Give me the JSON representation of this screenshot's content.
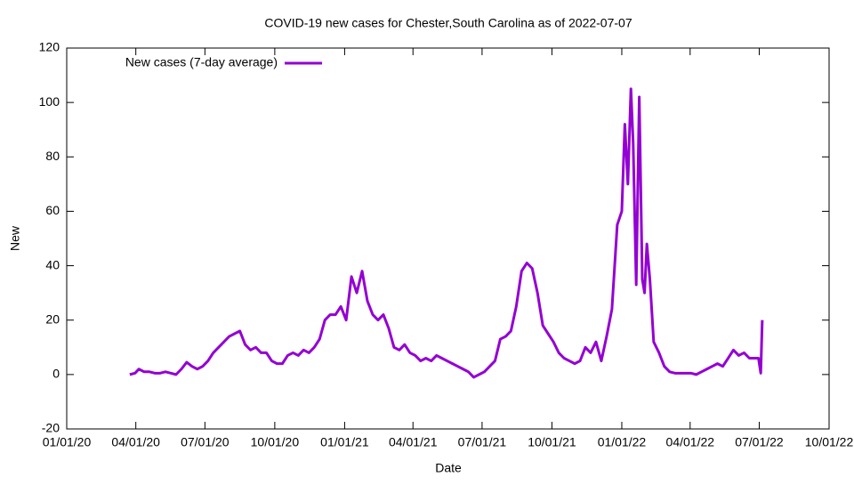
{
  "chart_data": {
    "type": "line",
    "title": "COVID-19 new cases for Chester,South Carolina as of 2022-07-07",
    "x_label": "Date",
    "y_label": "New",
    "xlim": [
      "2020-01-01",
      "2022-10-01"
    ],
    "xticks": [
      {
        "value": "2020-01-01",
        "label": "01/01/20"
      },
      {
        "value": "2020-04-01",
        "label": "04/01/20"
      },
      {
        "value": "2020-07-01",
        "label": "07/01/20"
      },
      {
        "value": "2020-10-01",
        "label": "10/01/20"
      },
      {
        "value": "2021-01-01",
        "label": "01/01/21"
      },
      {
        "value": "2021-04-01",
        "label": "04/01/21"
      },
      {
        "value": "2021-07-01",
        "label": "07/01/21"
      },
      {
        "value": "2021-10-01",
        "label": "10/01/21"
      },
      {
        "value": "2022-01-01",
        "label": "01/01/22"
      },
      {
        "value": "2022-04-01",
        "label": "04/01/22"
      },
      {
        "value": "2022-07-01",
        "label": "07/01/22"
      },
      {
        "value": "2022-10-01",
        "label": "10/01/22"
      }
    ],
    "ylim": [
      -20,
      120
    ],
    "yticks": [
      -20,
      0,
      20,
      40,
      60,
      80,
      100,
      120
    ],
    "legend": "top-left",
    "x": [
      "2020-03-24",
      "2020-03-31",
      "2020-04-05",
      "2020-04-12",
      "2020-04-19",
      "2020-04-26",
      "2020-05-03",
      "2020-05-10",
      "2020-05-17",
      "2020-05-24",
      "2020-05-31",
      "2020-06-07",
      "2020-06-14",
      "2020-06-21",
      "2020-06-28",
      "2020-07-05",
      "2020-07-12",
      "2020-07-19",
      "2020-07-26",
      "2020-08-02",
      "2020-08-09",
      "2020-08-16",
      "2020-08-23",
      "2020-08-30",
      "2020-09-06",
      "2020-09-13",
      "2020-09-20",
      "2020-09-27",
      "2020-10-04",
      "2020-10-11",
      "2020-10-18",
      "2020-10-25",
      "2020-11-01",
      "2020-11-08",
      "2020-11-15",
      "2020-11-22",
      "2020-11-29",
      "2020-12-06",
      "2020-12-13",
      "2020-12-20",
      "2020-12-27",
      "2021-01-03",
      "2021-01-10",
      "2021-01-17",
      "2021-01-24",
      "2021-01-31",
      "2021-02-07",
      "2021-02-14",
      "2021-02-21",
      "2021-02-28",
      "2021-03-07",
      "2021-03-14",
      "2021-03-21",
      "2021-03-28",
      "2021-04-04",
      "2021-04-11",
      "2021-04-18",
      "2021-04-25",
      "2021-05-02",
      "2021-05-09",
      "2021-05-16",
      "2021-05-23",
      "2021-05-30",
      "2021-06-06",
      "2021-06-13",
      "2021-06-20",
      "2021-06-27",
      "2021-07-04",
      "2021-07-11",
      "2021-07-18",
      "2021-07-25",
      "2021-08-01",
      "2021-08-08",
      "2021-08-15",
      "2021-08-22",
      "2021-08-29",
      "2021-09-05",
      "2021-09-12",
      "2021-09-19",
      "2021-09-26",
      "2021-10-03",
      "2021-10-10",
      "2021-10-17",
      "2021-10-24",
      "2021-10-31",
      "2021-11-07",
      "2021-11-14",
      "2021-11-21",
      "2021-11-28",
      "2021-12-05",
      "2021-12-12",
      "2021-12-19",
      "2021-12-26",
      "2022-01-01",
      "2022-01-05",
      "2022-01-09",
      "2022-01-13",
      "2022-01-16",
      "2022-01-20",
      "2022-01-24",
      "2022-01-28",
      "2022-01-31",
      "2022-02-03",
      "2022-02-07",
      "2022-02-12",
      "2022-02-19",
      "2022-02-26",
      "2022-03-05",
      "2022-03-12",
      "2022-03-19",
      "2022-03-26",
      "2022-04-02",
      "2022-04-09",
      "2022-04-16",
      "2022-04-23",
      "2022-04-30",
      "2022-05-07",
      "2022-05-14",
      "2022-05-21",
      "2022-05-28",
      "2022-06-04",
      "2022-06-11",
      "2022-06-18",
      "2022-06-25",
      "2022-06-30",
      "2022-07-03",
      "2022-07-05"
    ],
    "series": [
      {
        "name": "New cases (7-day average)",
        "color": "#9400d3",
        "values": [
          0,
          0.5,
          2,
          1,
          1,
          0.5,
          0.5,
          1,
          0.5,
          0,
          2,
          4.5,
          3,
          2,
          3,
          5,
          8,
          10,
          12,
          14,
          15,
          16,
          11,
          9,
          10,
          8,
          8,
          5,
          4,
          4,
          7,
          8,
          7,
          9,
          8,
          10,
          13,
          20,
          22,
          22,
          25,
          20,
          36,
          30,
          38,
          27,
          22,
          20,
          22,
          17,
          10,
          9,
          11,
          8,
          7,
          5,
          6,
          5,
          7,
          6,
          5,
          4,
          3,
          2,
          1,
          -1,
          0,
          1,
          3,
          5,
          13,
          14,
          16,
          25,
          38,
          41,
          39,
          30,
          18,
          15,
          12,
          8,
          6,
          5,
          4,
          5,
          10,
          8,
          12,
          5,
          14,
          24,
          55,
          60,
          92,
          70,
          105,
          85,
          33,
          102,
          35,
          30,
          48,
          35,
          12,
          8,
          3,
          1,
          0.5,
          0.5,
          0.5,
          0.5,
          0,
          1,
          2,
          3,
          4,
          3,
          6,
          9,
          7,
          8,
          6,
          6,
          6,
          0.5,
          20
        ]
      }
    ]
  }
}
